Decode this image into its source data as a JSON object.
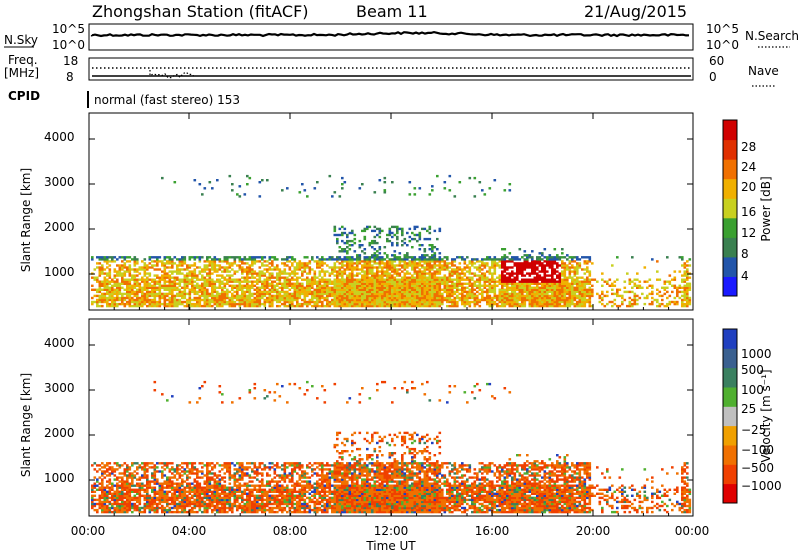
{
  "header": {
    "station": "Zhongshan Station (fitACF)",
    "beam": "Beam 11",
    "date": "21/Aug/2015"
  },
  "status_panels": {
    "nsky_label": "N.Sky",
    "nsky_ticks": [
      "10^5",
      "10^0"
    ],
    "nsearch_label": "N.Search",
    "nsearch_ticks": [
      "10^5",
      "10^0"
    ],
    "freq_label": "Freq.",
    "freq_unit": "[MHz]",
    "freq_ticks": [
      "18",
      "8"
    ],
    "nave_label": "Nave",
    "nave_ticks": [
      "60",
      "0"
    ],
    "cpid_label": "CPID",
    "cpid_value": "normal (fast stereo) 153"
  },
  "colors": {
    "power_scale": [
      "#1a1aff",
      "#2255aa",
      "#3a8050",
      "#3aa030",
      "#c8d020",
      "#f0b000",
      "#f07000",
      "#e03000",
      "#d00000"
    ],
    "velocity_scale": [
      "#2040c0",
      "#3a6090",
      "#3a8060",
      "#50b030",
      "#c0c0c0",
      "#f0a000",
      "#f07000",
      "#f04000",
      "#e00000"
    ]
  },
  "chart_data": [
    {
      "type": "heatmap",
      "title": "",
      "xlabel": "",
      "ylabel": "Slant Range [km]",
      "yticks": [
        "1000",
        "2000",
        "3000",
        "4000"
      ],
      "ylim": [
        180,
        4500
      ],
      "xticks": [
        "00:00",
        "04:00",
        "08:00",
        "12:00",
        "16:00",
        "20:00",
        "00:00"
      ],
      "colorbar_label": "Power [dB]",
      "colorbar_ticks": [
        "4",
        "8",
        "12",
        "16",
        "20",
        "24",
        "28"
      ],
      "colorbar_range": [
        0,
        30
      ]
    },
    {
      "type": "heatmap",
      "title": "",
      "xlabel": "Time UT",
      "ylabel": "Slant Range [km]",
      "yticks": [
        "1000",
        "2000",
        "3000",
        "4000"
      ],
      "ylim": [
        180,
        4500
      ],
      "xticks": [
        "00:00",
        "04:00",
        "08:00",
        "12:00",
        "16:00",
        "20:00",
        "00:00"
      ],
      "colorbar_label": "Velocity [m s⁻¹]",
      "colorbar_ticks": [
        "1000",
        "500",
        "100",
        "25",
        "−25",
        "−100",
        "−500",
        "−1000"
      ],
      "colorbar_range": [
        -1000,
        1000
      ]
    }
  ]
}
